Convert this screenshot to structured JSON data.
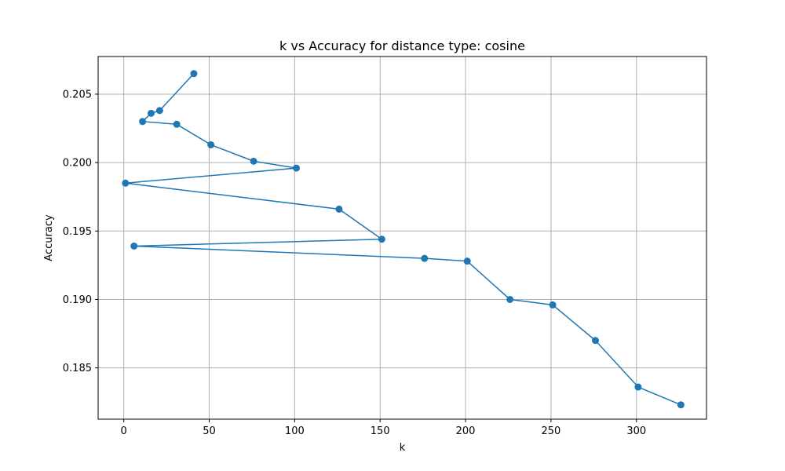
{
  "chart_data": {
    "type": "line",
    "title": "k vs Accuracy for distance type: cosine",
    "xlabel": "k",
    "ylabel": "Accuracy",
    "xlim": [
      -15,
      341
    ],
    "ylim": [
      0.18125,
      0.20775
    ],
    "xticks": [
      0,
      50,
      100,
      150,
      200,
      250,
      300
    ],
    "yticks": [
      0.185,
      0.19,
      0.195,
      0.2,
      0.205
    ],
    "ytick_labels": [
      "0.185",
      "0.190",
      "0.195",
      "0.200",
      "0.205"
    ],
    "grid": true,
    "series": [
      {
        "color": "#1f77b4",
        "marker": "circle",
        "x": [
          41,
          21,
          16,
          11,
          31,
          51,
          76,
          101,
          1,
          126,
          151,
          6,
          176,
          201,
          226,
          251,
          276,
          301,
          326
        ],
        "y": [
          0.2065,
          0.2038,
          0.2036,
          0.203,
          0.2028,
          0.2013,
          0.2001,
          0.1996,
          0.1985,
          0.1966,
          0.1944,
          0.1939,
          0.193,
          0.1928,
          0.19,
          0.1896,
          0.187,
          0.1836,
          0.1823
        ]
      }
    ]
  }
}
